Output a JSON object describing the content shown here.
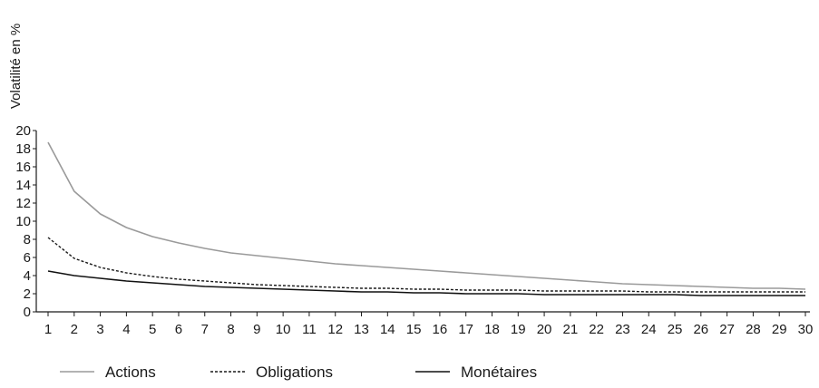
{
  "chart_data": {
    "type": "line",
    "title": "",
    "xlabel": "",
    "ylabel": "Volatilité en %",
    "x": [
      1,
      2,
      3,
      4,
      5,
      6,
      7,
      8,
      9,
      10,
      11,
      12,
      13,
      14,
      15,
      16,
      17,
      18,
      19,
      20,
      21,
      22,
      23,
      24,
      25,
      26,
      27,
      28,
      29,
      30
    ],
    "xlim": [
      1,
      30
    ],
    "ylim": [
      0,
      20
    ],
    "yticks": [
      0,
      2,
      4,
      6,
      8,
      10,
      12,
      14,
      16,
      18,
      20
    ],
    "grid": false,
    "legend_position": "bottom",
    "series": [
      {
        "name": "Actions",
        "color": "#9a9a9a",
        "style": "solid",
        "values": [
          18.7,
          13.3,
          10.8,
          9.3,
          8.3,
          7.6,
          7.0,
          6.5,
          6.2,
          5.9,
          5.6,
          5.3,
          5.1,
          4.9,
          4.7,
          4.5,
          4.3,
          4.1,
          3.9,
          3.7,
          3.5,
          3.3,
          3.1,
          3.0,
          2.9,
          2.8,
          2.7,
          2.6,
          2.6,
          2.5
        ]
      },
      {
        "name": "Obligations",
        "color": "#1a1a1a",
        "style": "dashed",
        "values": [
          8.2,
          5.9,
          4.9,
          4.3,
          3.9,
          3.6,
          3.4,
          3.2,
          3.0,
          2.9,
          2.8,
          2.7,
          2.6,
          2.6,
          2.5,
          2.5,
          2.4,
          2.4,
          2.4,
          2.3,
          2.3,
          2.3,
          2.3,
          2.2,
          2.2,
          2.2,
          2.2,
          2.2,
          2.2,
          2.2
        ]
      },
      {
        "name": "Monétaires",
        "color": "#111111",
        "style": "solid",
        "values": [
          4.5,
          4.0,
          3.7,
          3.4,
          3.2,
          3.0,
          2.8,
          2.7,
          2.6,
          2.5,
          2.4,
          2.3,
          2.2,
          2.2,
          2.1,
          2.1,
          2.0,
          2.0,
          2.0,
          1.9,
          1.9,
          1.9,
          1.9,
          1.9,
          1.9,
          1.8,
          1.8,
          1.8,
          1.8,
          1.8
        ]
      }
    ]
  }
}
